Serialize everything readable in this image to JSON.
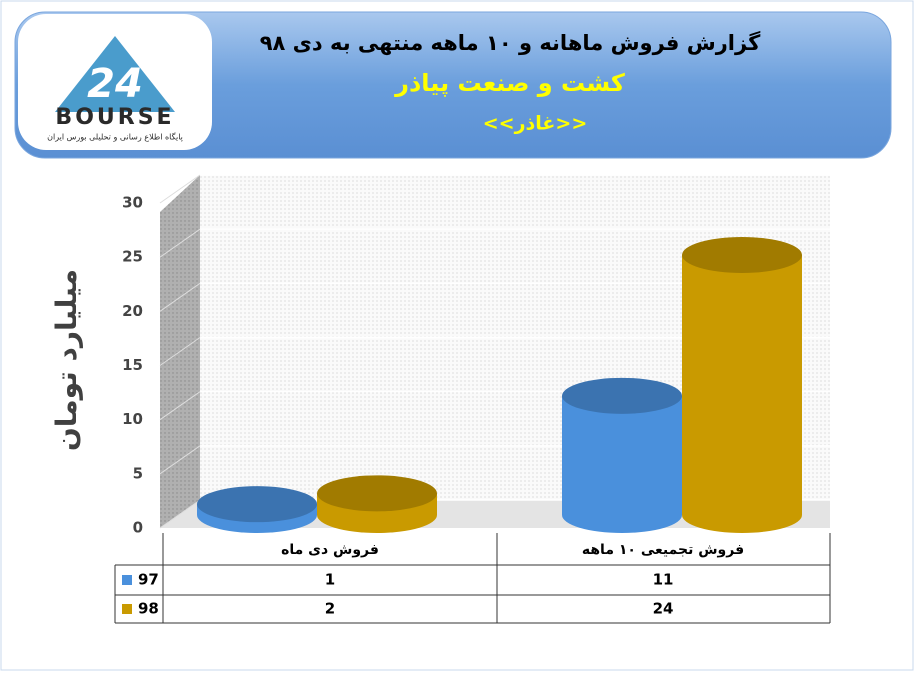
{
  "logo": {
    "mark": "24",
    "name": "BOURSE",
    "tagline": "پایگاه اطلاع رسانی و تحلیلی بورس ایران"
  },
  "chart_data": {
    "type": "bar",
    "title": "گزارش فروش ماهانه و ۱۰ ماهه منتهی به دی ۹۸",
    "subtitle": "کشت و صنعت پیاذر",
    "symbol": "<<غاذر>>",
    "y_label": "میلیارد تومان",
    "categories": [
      "فروش دی  ماه",
      "فروش تجمیعی ۱۰ ماهه"
    ],
    "series": [
      {
        "name": "97",
        "color": "#4a90dc",
        "values": [
          1,
          11
        ]
      },
      {
        "name": "98",
        "color": "#c99a00",
        "values": [
          2,
          24
        ]
      }
    ],
    "ylim": [
      0,
      30
    ],
    "yticks": [
      0,
      5,
      10,
      15,
      20,
      25,
      30
    ],
    "grid": true
  }
}
